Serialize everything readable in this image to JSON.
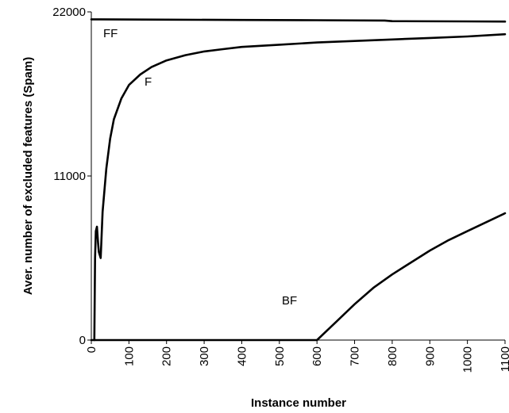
{
  "chart_data": {
    "type": "line",
    "title": "",
    "xlabel": "Instance number",
    "ylabel": "Aver. number of excluded features (Spam)",
    "xlim": [
      0,
      1100
    ],
    "ylim": [
      0,
      22000
    ],
    "xticks": [
      0,
      100,
      200,
      300,
      400,
      500,
      600,
      700,
      800,
      900,
      1000,
      1100
    ],
    "yticks": [
      0,
      11000,
      22000
    ],
    "xtick_labels": [
      "0",
      "100",
      "200",
      "300",
      "400",
      "500",
      "600",
      "700",
      "800",
      "900",
      "1000",
      "1100"
    ],
    "ytick_labels": [
      "0",
      "11000",
      "22000"
    ],
    "grid": false,
    "legend": "none",
    "series": [
      {
        "name": "FF",
        "x": [
          0,
          200,
          400,
          600,
          780,
          800,
          1000,
          1100
        ],
        "y": [
          21500,
          21480,
          21460,
          21440,
          21420,
          21380,
          21360,
          21350
        ]
      },
      {
        "name": "F",
        "x": [
          8,
          10,
          12,
          15,
          18,
          20,
          25,
          30,
          40,
          50,
          60,
          80,
          100,
          130,
          160,
          200,
          250,
          300,
          350,
          400,
          500,
          600,
          700,
          800,
          900,
          1000,
          1100
        ],
        "y": [
          0,
          5500,
          7300,
          7600,
          6500,
          5900,
          5500,
          8600,
          11500,
          13500,
          14800,
          16200,
          17100,
          17800,
          18300,
          18750,
          19100,
          19350,
          19500,
          19650,
          19800,
          19950,
          20050,
          20150,
          20250,
          20350,
          20500
        ]
      },
      {
        "name": "BF",
        "x": [
          0,
          600,
          650,
          700,
          750,
          800,
          850,
          900,
          950,
          1000,
          1050,
          1100
        ],
        "y": [
          0,
          0,
          1200,
          2400,
          3500,
          4400,
          5200,
          6000,
          6700,
          7300,
          7900,
          8500
        ]
      }
    ]
  }
}
